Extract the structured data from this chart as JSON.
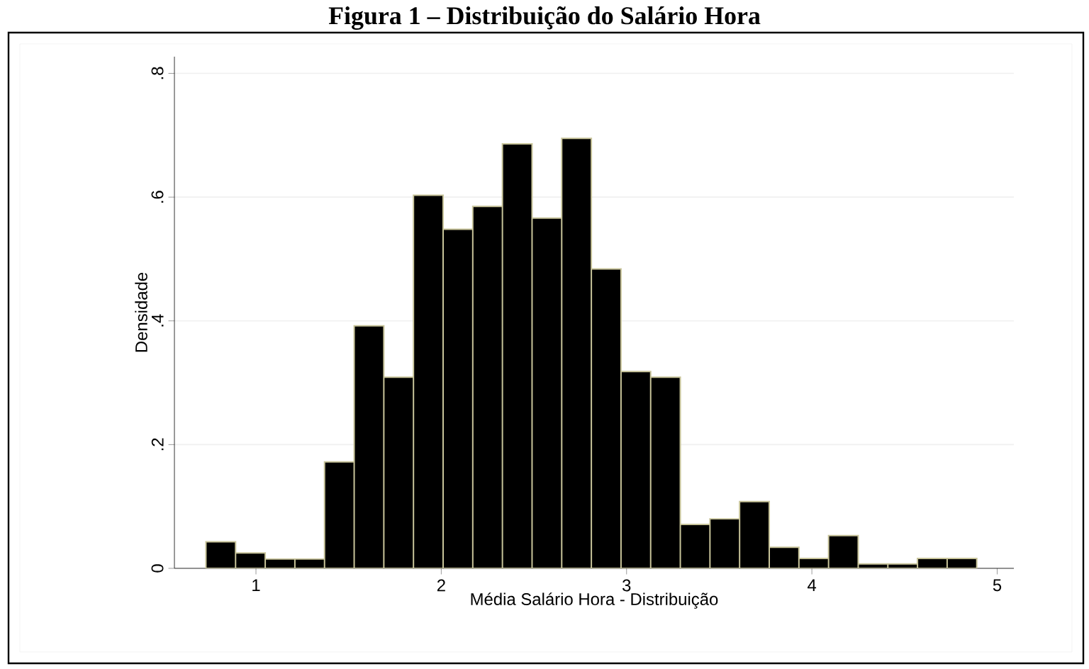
{
  "chart_data": {
    "type": "histogram",
    "title": "Figura 1 – Distribuição do Salário Hora",
    "xlabel": "Média Salário Hora - Distribuição",
    "ylabel": "Densidade",
    "bins": [
      0.73,
      0.89,
      1.05,
      1.21,
      1.37,
      1.53,
      1.69,
      1.85,
      2.01,
      2.17,
      2.33,
      2.49,
      2.65,
      2.81,
      2.97,
      3.13,
      3.29,
      3.45,
      3.61,
      3.77,
      3.93,
      4.09,
      4.25,
      4.41,
      4.57,
      4.73,
      4.89
    ],
    "values": [
      0.043,
      0.025,
      0.015,
      0.015,
      0.172,
      0.392,
      0.309,
      0.603,
      0.548,
      0.585,
      0.686,
      0.566,
      0.695,
      0.484,
      0.318,
      0.309,
      0.071,
      0.08,
      0.108,
      0.034,
      0.016,
      0.053,
      0.007,
      0.007,
      0.016,
      0.016
    ],
    "color": "#000000",
    "xlim": [
      0.56,
      5.09
    ],
    "ylim": [
      0,
      0.827
    ],
    "xticks": [
      1,
      2,
      3,
      4,
      5
    ],
    "yticks": [
      0,
      {
        "value": 0.2,
        "label": ".2"
      },
      {
        "value": 0.4,
        "label": ".4"
      },
      {
        "value": 0.6,
        "label": ".6"
      },
      {
        "value": 0.8,
        "label": ".8"
      }
    ],
    "grid": "y"
  }
}
